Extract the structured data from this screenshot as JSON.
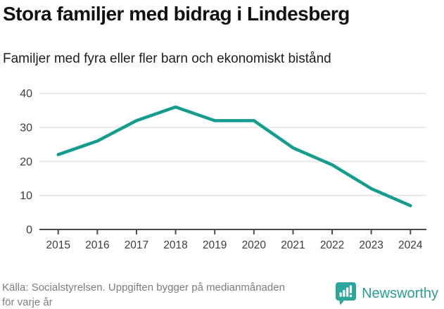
{
  "header": {
    "title": "Stora familjer med bidrag i Lindesberg",
    "subtitle": "Familjer med fyra eller fler barn och ekonomiskt bistånd"
  },
  "chart_data": {
    "type": "line",
    "title": "Stora familjer med bidrag i Lindesberg",
    "subtitle": "Familjer med fyra eller fler barn och ekonomiskt bistånd",
    "categories": [
      "2015",
      "2016",
      "2017",
      "2018",
      "2019",
      "2020",
      "2021",
      "2022",
      "2023",
      "2024"
    ],
    "values": [
      22,
      26,
      32,
      36,
      32,
      32,
      24,
      19,
      12,
      7
    ],
    "y_ticks": [
      0,
      10,
      20,
      30,
      40
    ],
    "ylim": [
      0,
      40
    ],
    "xlabel": "",
    "ylabel": "",
    "grid": true,
    "legend": "none",
    "line_color": "#149d8e",
    "axis_color": "#4a4a4a",
    "grid_color": "#e3e3e3",
    "tick_label_color": "#3c3c3c"
  },
  "footer": {
    "source_line1": "Källa: Socialstyrelsen. Uppgiften bygger på medianmånaden",
    "source_line2": "för varje år",
    "brand_name": "Newsworthy",
    "brand_color": "#2a9d95"
  }
}
